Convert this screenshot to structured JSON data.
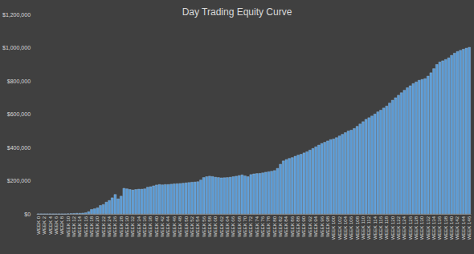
{
  "chart_data": {
    "type": "bar",
    "title": "Day Trading Equity Curve",
    "categories": [
      "WEEK 0",
      null,
      "WEEK 2",
      null,
      "WEEK 4",
      null,
      "WEEK 6",
      null,
      "WEEK 8",
      null,
      "WEEK 10",
      null,
      "WEEK 12",
      null,
      "WEEK 14",
      null,
      "WEEK 16",
      null,
      "WEEK 18",
      null,
      "WEEK 20",
      null,
      "WEEK 22",
      null,
      "WEEK 24",
      null,
      "WEEK 26",
      null,
      "WEEK 28",
      null,
      "WEEK 30",
      null,
      "WEEK 32",
      null,
      "WEEK 34",
      null,
      "WEEK 36",
      null,
      "WEEK 38",
      null,
      "WEEK 40",
      null,
      "WEEK 42",
      null,
      "WEEK 44",
      null,
      "WEEK 46",
      null,
      "WEEK 48",
      null,
      "WEEK 50",
      null,
      "WEEK 52",
      null,
      "WEEK 54",
      null,
      "WEEK 56",
      null,
      "WEEK 58",
      null,
      "WEEK 60",
      null,
      "WEEK 62",
      null,
      "WEEK 64",
      null,
      "WEEK 66",
      null,
      "WEEK 68",
      null,
      "WEEK 70",
      null,
      "WEEK 72",
      null,
      "WEEK 74",
      null,
      "WEEK 76",
      null,
      "WEEK 78",
      null,
      "WEEK 80",
      null,
      "WEEK 82",
      null,
      "WEEK 84",
      null,
      "WEEK 86",
      null,
      "WEEK 88",
      null,
      "WEEK 90",
      null,
      "WEEK 92",
      null,
      "WEEK 94",
      null,
      "WEEK 96",
      null,
      "WEEK 98",
      null,
      "WEEK 100",
      null,
      "WEEK 102",
      null,
      "WEEK 104",
      null,
      "WEEK 106",
      null,
      "WEEK 108",
      null,
      "WEEK 110",
      null,
      "WEEK 112",
      null,
      "WEEK 114",
      null,
      "WEEK 116",
      null,
      "WEEK 118",
      null,
      "WEEK 120",
      null,
      "WEEK 122",
      null,
      "WEEK 124",
      null,
      "WEEK 126",
      null,
      "WEEK 128",
      null,
      "WEEK 130",
      null,
      "WEEK 132",
      null,
      "WEEK 134",
      null,
      "WEEK 136",
      null,
      "WEEK 138",
      null,
      "WEEK 140",
      null,
      "WEEK 142",
      null,
      "WEEK 144",
      null,
      "WEEK 146"
    ],
    "values": [
      0,
      0,
      0,
      0,
      0,
      0,
      0,
      0,
      0,
      0,
      2000,
      3000,
      4000,
      5000,
      5000,
      6000,
      8000,
      15000,
      28000,
      32000,
      38000,
      52000,
      58000,
      72000,
      82000,
      98000,
      118000,
      92000,
      108000,
      155000,
      152000,
      148000,
      145000,
      148000,
      150000,
      150000,
      152000,
      162000,
      165000,
      170000,
      175000,
      178000,
      176000,
      178000,
      178000,
      180000,
      182000,
      183000,
      184000,
      186000,
      188000,
      190000,
      192000,
      193000,
      195000,
      205000,
      220000,
      225000,
      228000,
      226000,
      222000,
      220000,
      218000,
      219000,
      220000,
      222000,
      225000,
      228000,
      232000,
      236000,
      230000,
      225000,
      238000,
      242000,
      244000,
      245000,
      248000,
      252000,
      255000,
      258000,
      262000,
      275000,
      300000,
      320000,
      328000,
      335000,
      340000,
      348000,
      355000,
      360000,
      368000,
      375000,
      385000,
      395000,
      405000,
      415000,
      425000,
      432000,
      440000,
      448000,
      452000,
      460000,
      470000,
      480000,
      490000,
      500000,
      505000,
      515000,
      528000,
      542000,
      556000,
      570000,
      580000,
      590000,
      602000,
      615000,
      625000,
      638000,
      650000,
      668000,
      685000,
      700000,
      715000,
      730000,
      745000,
      760000,
      772000,
      785000,
      795000,
      805000,
      810000,
      815000,
      830000,
      850000,
      875000,
      900000,
      915000,
      922000,
      930000,
      940000,
      955000,
      968000,
      978000,
      985000,
      992000,
      998000,
      1003000
    ],
    "color": "#5b9bd5",
    "ylim": [
      0,
      1200000
    ],
    "yticks": [
      {
        "value": 0,
        "label": "$0"
      },
      {
        "value": 200000,
        "label": "$200,000"
      },
      {
        "value": 400000,
        "label": "$400,000"
      },
      {
        "value": 600000,
        "label": "$600,000"
      },
      {
        "value": 800000,
        "label": "$800,000"
      },
      {
        "value": 1000000,
        "label": "$1,000,000"
      },
      {
        "value": 1200000,
        "label": "$1,200,000"
      }
    ],
    "grid": false
  }
}
